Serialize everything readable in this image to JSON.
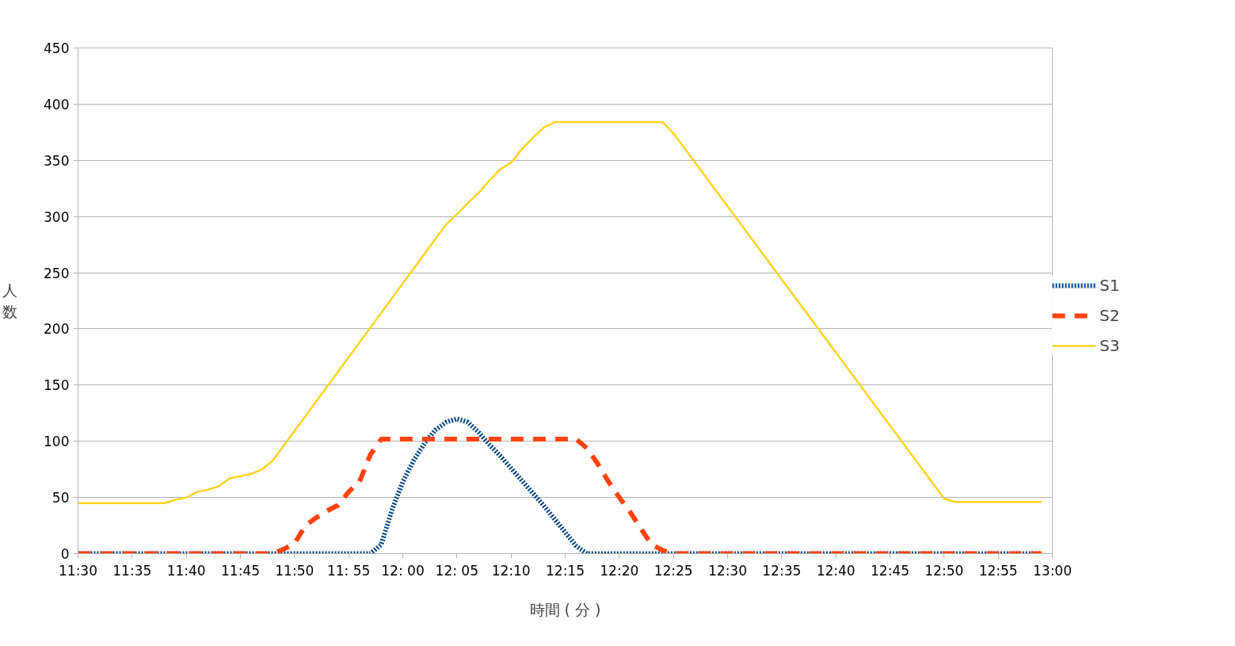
{
  "chart_data": {
    "type": "line",
    "xlabel": "時間 ( 分 )",
    "ylabel": "人数",
    "xlim": [
      11.5,
      13.0
    ],
    "ylim": [
      0,
      450
    ],
    "xticks": [
      {
        "value": 11.5,
        "label": "11:30"
      },
      {
        "value": 11.5833,
        "label": "11:35"
      },
      {
        "value": 11.6667,
        "label": "11:40"
      },
      {
        "value": 11.75,
        "label": "11:45"
      },
      {
        "value": 11.8333,
        "label": "11:50"
      },
      {
        "value": 11.9167,
        "label": "11: 55"
      },
      {
        "value": 12.0,
        "label": "12: 00"
      },
      {
        "value": 12.0833,
        "label": "12: 05"
      },
      {
        "value": 12.1667,
        "label": "12:10"
      },
      {
        "value": 12.25,
        "label": "12:15"
      },
      {
        "value": 12.3333,
        "label": "12:20"
      },
      {
        "value": 12.4167,
        "label": "12:25"
      },
      {
        "value": 12.5,
        "label": "12:30"
      },
      {
        "value": 12.5833,
        "label": "12:35"
      },
      {
        "value": 12.6667,
        "label": "12:40"
      },
      {
        "value": 12.75,
        "label": "12:45"
      },
      {
        "value": 12.8333,
        "label": "12:50"
      },
      {
        "value": 12.9167,
        "label": "12:55"
      },
      {
        "value": 13.0,
        "label": "13:00"
      }
    ],
    "yticks": [
      0,
      50,
      100,
      150,
      200,
      250,
      300,
      350,
      400,
      450
    ],
    "grid": "y",
    "legend": "right",
    "series": [
      {
        "name": "S1",
        "color": "#004586",
        "line_style": "dotted",
        "x": [
          11.5,
          11.95,
          11.9667,
          11.9833,
          12.0,
          12.0167,
          12.0333,
          12.05,
          12.0667,
          12.0833,
          12.1,
          12.1167,
          12.1333,
          12.15,
          12.1667,
          12.1833,
          12.2,
          12.2167,
          12.2333,
          12.25,
          12.2667,
          12.2833,
          12.9833
        ],
        "values": [
          0,
          0,
          8,
          39,
          64,
          83,
          98,
          110,
          117,
          120,
          117,
          108,
          97,
          87,
          76,
          65,
          54,
          43,
          31,
          19,
          7,
          0,
          0
        ]
      },
      {
        "name": "S2",
        "color": "#ff420e",
        "line_style": "dashed",
        "x": [
          11.5,
          11.8,
          11.8167,
          11.8333,
          11.85,
          11.8667,
          11.8833,
          11.9,
          11.9167,
          11.9333,
          11.95,
          11.9667,
          12.2667,
          12.2833,
          12.3,
          12.3167,
          12.3333,
          12.35,
          12.3667,
          12.3833,
          12.4,
          12.4167,
          12.9833
        ],
        "values": [
          0,
          0,
          4,
          9,
          25,
          32,
          38,
          43,
          55,
          64,
          88,
          102,
          102,
          94,
          80,
          64,
          50,
          37,
          22,
          8,
          3,
          0,
          0
        ]
      },
      {
        "name": "S3",
        "color": "#ffd320",
        "line_style": "solid",
        "x": [
          11.5,
          11.6333,
          11.65,
          11.6667,
          11.6833,
          11.7,
          11.7167,
          11.7333,
          11.75,
          11.7667,
          11.7833,
          11.8,
          12.0667,
          12.0833,
          12.1,
          12.1167,
          12.1333,
          12.15,
          12.1667,
          12.1833,
          12.2,
          12.2167,
          12.2333,
          12.4,
          12.4167,
          12.8333,
          12.85,
          12.9833
        ],
        "values": [
          45,
          45,
          48,
          50,
          55,
          57,
          60,
          67,
          69,
          71,
          75,
          83,
          293,
          302,
          312,
          321,
          332,
          342,
          348,
          360,
          370,
          379,
          384,
          384,
          374,
          49,
          46,
          46
        ]
      }
    ]
  }
}
